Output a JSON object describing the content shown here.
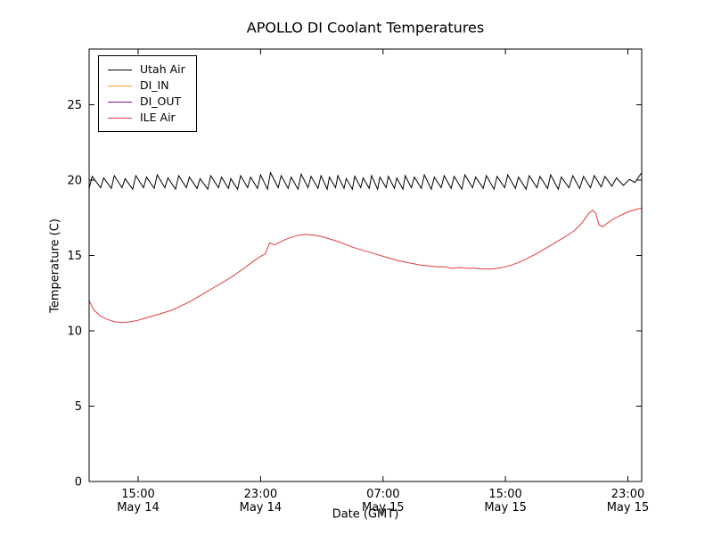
{
  "chart_data": {
    "type": "line",
    "title": "APOLLO DI Coolant Temperatures",
    "xlabel": "Date (GMT)",
    "ylabel": "Temperature (C)",
    "x_unit": "hours since May 14 00:00 GMT",
    "xlim": [
      11.8,
      47.9
    ],
    "ylim": [
      0,
      28.7
    ],
    "grid": false,
    "legend_position": "upper left",
    "yticks": [
      0,
      5,
      10,
      15,
      20,
      25
    ],
    "xticks": [
      {
        "value": 15,
        "time": "15:00",
        "date": "May 14"
      },
      {
        "value": 23,
        "time": "23:00",
        "date": "May 14"
      },
      {
        "value": 31,
        "time": "07:00",
        "date": "May 15"
      },
      {
        "value": 39,
        "time": "15:00",
        "date": "May 15"
      },
      {
        "value": 47,
        "time": "23:00",
        "date": "May 15"
      }
    ],
    "series": [
      {
        "name": "Utah Air",
        "color": "#000000",
        "points": [
          [
            11.8,
            19.45
          ],
          [
            12.0,
            20.25
          ],
          [
            12.55,
            19.5
          ],
          [
            12.75,
            20.15
          ],
          [
            13.25,
            19.45
          ],
          [
            13.45,
            20.3
          ],
          [
            13.95,
            19.5
          ],
          [
            14.15,
            20.1
          ],
          [
            14.65,
            19.4
          ],
          [
            14.85,
            20.3
          ],
          [
            15.35,
            19.5
          ],
          [
            15.55,
            20.2
          ],
          [
            16.05,
            19.45
          ],
          [
            16.25,
            20.35
          ],
          [
            16.75,
            19.5
          ],
          [
            16.95,
            20.15
          ],
          [
            17.45,
            19.4
          ],
          [
            17.65,
            20.3
          ],
          [
            18.15,
            19.5
          ],
          [
            18.35,
            20.2
          ],
          [
            18.85,
            19.45
          ],
          [
            19.05,
            20.1
          ],
          [
            19.55,
            19.4
          ],
          [
            19.75,
            20.3
          ],
          [
            20.25,
            19.5
          ],
          [
            20.45,
            20.2
          ],
          [
            20.9,
            19.45
          ],
          [
            21.05,
            20.1
          ],
          [
            21.5,
            19.4
          ],
          [
            21.7,
            20.3
          ],
          [
            22.15,
            19.5
          ],
          [
            22.35,
            20.2
          ],
          [
            22.8,
            19.45
          ],
          [
            23.0,
            20.35
          ],
          [
            23.45,
            19.4
          ],
          [
            23.65,
            20.5
          ],
          [
            24.15,
            19.5
          ],
          [
            24.35,
            20.3
          ],
          [
            24.8,
            19.45
          ],
          [
            25.0,
            20.2
          ],
          [
            25.45,
            19.4
          ],
          [
            25.65,
            20.4
          ],
          [
            26.1,
            19.5
          ],
          [
            26.3,
            20.25
          ],
          [
            26.75,
            19.45
          ],
          [
            26.95,
            20.3
          ],
          [
            27.35,
            19.4
          ],
          [
            27.5,
            20.2
          ],
          [
            27.9,
            19.5
          ],
          [
            28.05,
            20.3
          ],
          [
            28.45,
            19.45
          ],
          [
            28.6,
            20.1
          ],
          [
            29.0,
            19.4
          ],
          [
            29.15,
            20.25
          ],
          [
            29.55,
            19.5
          ],
          [
            29.7,
            20.15
          ],
          [
            30.1,
            19.45
          ],
          [
            30.25,
            20.3
          ],
          [
            30.65,
            19.4
          ],
          [
            30.8,
            20.2
          ],
          [
            31.2,
            19.5
          ],
          [
            31.35,
            20.25
          ],
          [
            31.75,
            19.45
          ],
          [
            31.9,
            20.15
          ],
          [
            32.3,
            19.4
          ],
          [
            32.45,
            20.3
          ],
          [
            32.85,
            19.5
          ],
          [
            33.05,
            20.2
          ],
          [
            33.5,
            19.45
          ],
          [
            33.7,
            20.35
          ],
          [
            34.15,
            19.4
          ],
          [
            34.35,
            20.2
          ],
          [
            34.8,
            19.5
          ],
          [
            35.0,
            20.3
          ],
          [
            35.45,
            19.45
          ],
          [
            35.65,
            20.25
          ],
          [
            36.15,
            19.4
          ],
          [
            36.35,
            20.35
          ],
          [
            36.85,
            19.5
          ],
          [
            37.05,
            20.2
          ],
          [
            37.55,
            19.45
          ],
          [
            37.75,
            20.3
          ],
          [
            38.25,
            19.4
          ],
          [
            38.45,
            20.25
          ],
          [
            38.95,
            19.5
          ],
          [
            39.15,
            20.35
          ],
          [
            39.65,
            19.45
          ],
          [
            39.85,
            20.2
          ],
          [
            40.35,
            19.4
          ],
          [
            40.55,
            20.3
          ],
          [
            41.05,
            19.5
          ],
          [
            41.25,
            20.25
          ],
          [
            41.75,
            19.45
          ],
          [
            41.95,
            20.35
          ],
          [
            42.45,
            19.4
          ],
          [
            42.65,
            20.2
          ],
          [
            43.15,
            19.5
          ],
          [
            43.4,
            20.3
          ],
          [
            43.85,
            19.45
          ],
          [
            44.1,
            20.25
          ],
          [
            44.55,
            19.5
          ],
          [
            44.8,
            20.3
          ],
          [
            45.25,
            19.55
          ],
          [
            45.5,
            20.25
          ],
          [
            45.95,
            19.6
          ],
          [
            46.25,
            20.15
          ],
          [
            46.7,
            19.65
          ],
          [
            47.1,
            20.05
          ],
          [
            47.45,
            19.85
          ],
          [
            47.9,
            20.5
          ]
        ]
      },
      {
        "name": "DI_IN",
        "color": "#f5a623",
        "points": []
      },
      {
        "name": "DI_OUT",
        "color": "#7a0f8e",
        "points": []
      },
      {
        "name": "ILE Air",
        "color": "#e13b3b",
        "points": [
          [
            11.8,
            12.0
          ],
          [
            12.1,
            11.4
          ],
          [
            12.5,
            11.0
          ],
          [
            13.0,
            10.75
          ],
          [
            13.5,
            10.6
          ],
          [
            14.0,
            10.55
          ],
          [
            14.5,
            10.6
          ],
          [
            15.0,
            10.7
          ],
          [
            15.5,
            10.85
          ],
          [
            16.0,
            11.0
          ],
          [
            16.5,
            11.15
          ],
          [
            17.0,
            11.3
          ],
          [
            17.5,
            11.5
          ],
          [
            18.0,
            11.75
          ],
          [
            18.5,
            12.0
          ],
          [
            19.0,
            12.3
          ],
          [
            19.5,
            12.6
          ],
          [
            20.0,
            12.9
          ],
          [
            20.5,
            13.2
          ],
          [
            21.0,
            13.5
          ],
          [
            21.5,
            13.85
          ],
          [
            22.0,
            14.2
          ],
          [
            22.5,
            14.6
          ],
          [
            23.0,
            14.95
          ],
          [
            23.3,
            15.1
          ],
          [
            23.6,
            15.85
          ],
          [
            23.9,
            15.7
          ],
          [
            24.2,
            15.85
          ],
          [
            24.6,
            16.05
          ],
          [
            25.0,
            16.2
          ],
          [
            25.5,
            16.35
          ],
          [
            26.0,
            16.4
          ],
          [
            26.5,
            16.35
          ],
          [
            27.0,
            16.25
          ],
          [
            27.5,
            16.1
          ],
          [
            28.0,
            15.95
          ],
          [
            28.5,
            15.75
          ],
          [
            29.0,
            15.55
          ],
          [
            29.5,
            15.4
          ],
          [
            30.0,
            15.25
          ],
          [
            30.5,
            15.1
          ],
          [
            31.0,
            14.95
          ],
          [
            31.5,
            14.8
          ],
          [
            32.0,
            14.65
          ],
          [
            32.5,
            14.55
          ],
          [
            33.0,
            14.45
          ],
          [
            33.5,
            14.35
          ],
          [
            34.0,
            14.3
          ],
          [
            34.5,
            14.25
          ],
          [
            35.0,
            14.25
          ],
          [
            35.5,
            14.15
          ],
          [
            36.0,
            14.2
          ],
          [
            36.5,
            14.15
          ],
          [
            37.0,
            14.15
          ],
          [
            37.5,
            14.1
          ],
          [
            38.0,
            14.1
          ],
          [
            38.5,
            14.15
          ],
          [
            39.0,
            14.25
          ],
          [
            39.5,
            14.4
          ],
          [
            40.0,
            14.6
          ],
          [
            40.5,
            14.85
          ],
          [
            41.0,
            15.1
          ],
          [
            41.5,
            15.4
          ],
          [
            42.0,
            15.7
          ],
          [
            42.5,
            16.0
          ],
          [
            43.0,
            16.3
          ],
          [
            43.5,
            16.65
          ],
          [
            44.0,
            17.15
          ],
          [
            44.3,
            17.6
          ],
          [
            44.5,
            17.85
          ],
          [
            44.7,
            18.0
          ],
          [
            44.9,
            17.8
          ],
          [
            45.1,
            17.05
          ],
          [
            45.35,
            16.9
          ],
          [
            45.6,
            17.1
          ],
          [
            46.0,
            17.4
          ],
          [
            46.5,
            17.65
          ],
          [
            47.0,
            17.9
          ],
          [
            47.5,
            18.05
          ],
          [
            47.9,
            18.15
          ]
        ]
      }
    ]
  }
}
